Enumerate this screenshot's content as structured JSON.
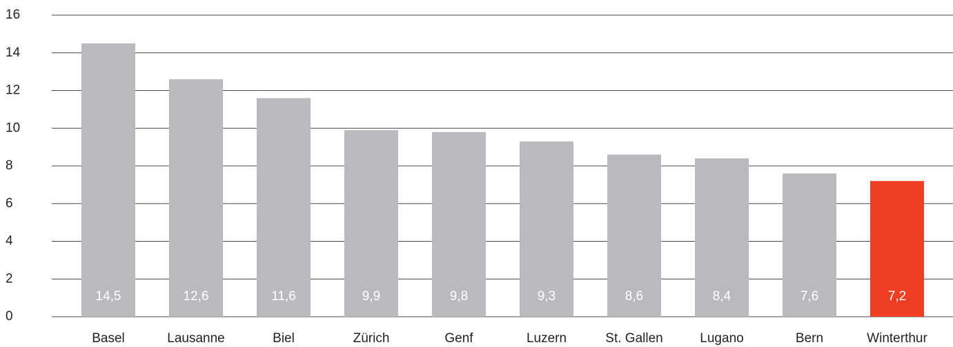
{
  "chart_data": {
    "type": "bar",
    "categories": [
      "Basel",
      "Lausanne",
      "Biel",
      "Zürich",
      "Genf",
      "Luzern",
      "St. Gallen",
      "Lugano",
      "Bern",
      "Winterthur"
    ],
    "values": [
      14.5,
      12.6,
      11.6,
      9.9,
      9.8,
      9.3,
      8.6,
      8.4,
      7.6,
      7.2
    ],
    "value_labels": [
      "14,5",
      "12,6",
      "11,6",
      "9,9",
      "9,8",
      "9,3",
      "8,6",
      "8,4",
      "7,6",
      "7,2"
    ],
    "colors": [
      "#b9babd",
      "#b9babd",
      "#b9babd",
      "#b9babd",
      "#b9babd",
      "#b9babd",
      "#b9babd",
      "#b9babd",
      "#b9babd",
      "#ef3e23"
    ],
    "ylim": [
      0,
      16
    ],
    "yticks": [
      0,
      2,
      4,
      6,
      8,
      10,
      12,
      14,
      16
    ],
    "grid": true
  }
}
